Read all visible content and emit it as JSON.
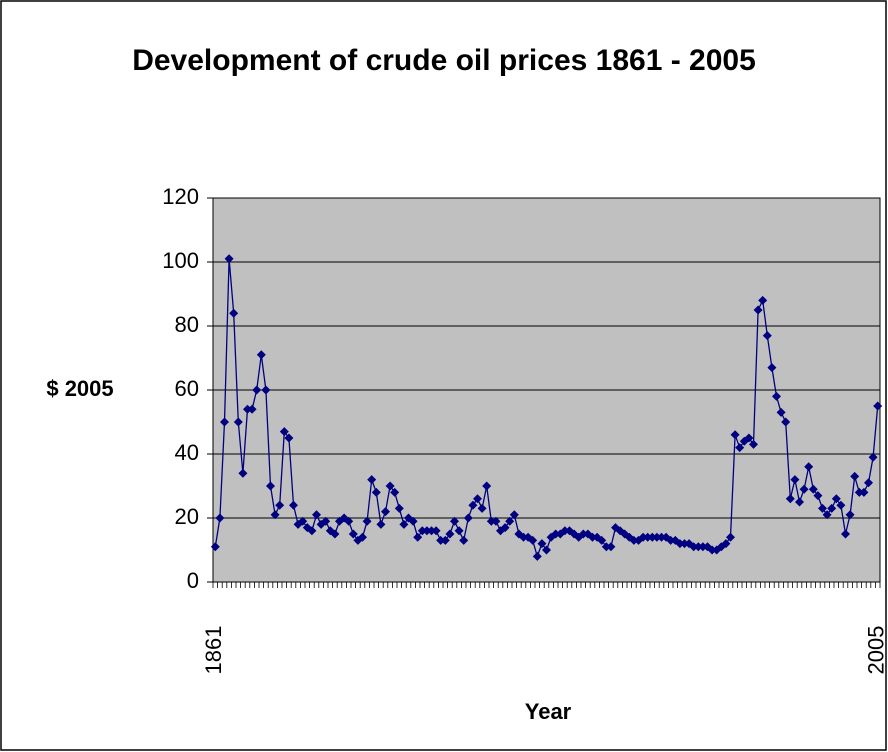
{
  "chart_data": {
    "type": "line",
    "title": "Development of crude oil prices 1861 - 2005",
    "x_label": "Year",
    "y_label": "$ 2005",
    "categories": [
      "1861",
      null,
      null,
      null,
      null,
      null,
      null,
      null,
      null,
      null,
      null,
      null,
      null,
      null,
      null,
      null,
      null,
      null,
      null,
      null,
      null,
      null,
      null,
      null,
      null,
      null,
      null,
      null,
      null,
      null,
      null,
      null,
      null,
      null,
      null,
      null,
      null,
      null,
      null,
      null,
      null,
      null,
      null,
      null,
      null,
      null,
      null,
      null,
      null,
      null,
      null,
      null,
      null,
      null,
      null,
      null,
      null,
      null,
      null,
      null,
      null,
      null,
      null,
      null,
      null,
      null,
      null,
      null,
      null,
      null,
      null,
      null,
      null,
      null,
      null,
      null,
      null,
      null,
      null,
      null,
      null,
      null,
      null,
      null,
      null,
      null,
      null,
      null,
      null,
      null,
      null,
      null,
      null,
      null,
      null,
      null,
      null,
      null,
      null,
      null,
      null,
      null,
      null,
      null,
      null,
      null,
      null,
      null,
      null,
      null,
      null,
      null,
      null,
      null,
      null,
      null,
      null,
      null,
      null,
      null,
      null,
      null,
      null,
      null,
      null,
      null,
      null,
      null,
      null,
      null,
      null,
      null,
      null,
      null,
      null,
      null,
      null,
      null,
      null,
      null,
      null,
      null,
      null,
      null,
      "2005"
    ],
    "series": [
      {
        "name": "$ 2005",
        "color": "#000080",
        "values": [
          11,
          20,
          50,
          101,
          84,
          50,
          34,
          54,
          54,
          60,
          71,
          60,
          30,
          21,
          24,
          47,
          45,
          24,
          18,
          19,
          17,
          16,
          21,
          18,
          19,
          16,
          15,
          19,
          20,
          19,
          15,
          13,
          14,
          19,
          32,
          28,
          18,
          22,
          30,
          28,
          23,
          18,
          20,
          19,
          14,
          16,
          16,
          16,
          16,
          13,
          13,
          15,
          19,
          16,
          13,
          20,
          24,
          26,
          23,
          30,
          19,
          19,
          16,
          17,
          19,
          21,
          15,
          14,
          14,
          13,
          8,
          12,
          10,
          14,
          15,
          15,
          16,
          16,
          15,
          14,
          15,
          15,
          14,
          14,
          13,
          11,
          11,
          17,
          16,
          15,
          14,
          13,
          13,
          14,
          14,
          14,
          14,
          14,
          14,
          13,
          13,
          12,
          12,
          12,
          11,
          11,
          11,
          11,
          10,
          10,
          11,
          12,
          14,
          46,
          42,
          44,
          45,
          43,
          85,
          88,
          77,
          67,
          58,
          53,
          50,
          26,
          32,
          25,
          29,
          36,
          29,
          27,
          23,
          21,
          23,
          26,
          24,
          15,
          21,
          33,
          28,
          28,
          31,
          39,
          55
        ]
      }
    ],
    "ylim": [
      0,
      120
    ],
    "yticks": [
      0,
      20,
      40,
      60,
      80,
      100,
      120
    ],
    "grid": true,
    "plot_background": "#c0c0c0"
  }
}
